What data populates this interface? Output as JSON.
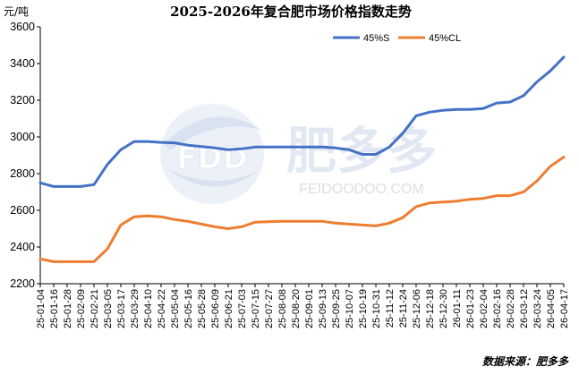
{
  "chart_data": {
    "type": "line",
    "title": "2025-2026年复合肥市场价格指数走势",
    "unit_label": "元/吨",
    "ylim": [
      2200,
      3600
    ],
    "yticks": [
      2200,
      2400,
      2600,
      2800,
      3000,
      3200,
      3400,
      3600
    ],
    "grid": false,
    "legend_position": "top-right",
    "x_tick_labels": [
      "25-01-04",
      "25-01-16",
      "25-01-28",
      "25-02-09",
      "25-02-21",
      "25-03-05",
      "25-03-17",
      "25-03-29",
      "25-04-10",
      "25-04-22",
      "25-05-04",
      "25-05-16",
      "25-05-28",
      "25-06-09",
      "25-06-21",
      "25-07-03",
      "25-07-15",
      "25-07-27",
      "25-08-08",
      "25-08-20",
      "25-09-01",
      "25-09-13",
      "25-09-25",
      "25-10-07",
      "25-10-19",
      "25-10-31",
      "25-11-12",
      "25-11-24",
      "25-12-06",
      "25-12-18",
      "25-12-30",
      "26-01-11",
      "26-01-23",
      "26-02-04",
      "26-02-16",
      "26-02-28",
      "26-03-12",
      "26-03-24",
      "26-04-05",
      "26-04-17"
    ],
    "x": [
      "25-01-04",
      "25-01-16",
      "25-01-28",
      "25-02-09",
      "25-02-21",
      "25-03-05",
      "25-03-17",
      "25-03-29",
      "25-04-10",
      "25-04-22",
      "25-05-04",
      "25-05-16",
      "25-05-28",
      "25-06-09",
      "25-06-21",
      "25-07-03",
      "25-07-15",
      "25-07-27",
      "25-08-08",
      "25-08-20",
      "25-09-01",
      "25-09-13",
      "25-09-25",
      "25-10-07",
      "25-10-19",
      "25-10-31",
      "25-11-12",
      "25-11-24",
      "25-12-06",
      "25-12-18",
      "25-12-30",
      "26-01-11",
      "26-01-23",
      "26-02-04",
      "26-02-16",
      "26-02-28",
      "26-03-12",
      "26-03-24",
      "26-04-05",
      "26-04-17"
    ],
    "series": [
      {
        "name": "45%S",
        "color": "#4472C4",
        "values": [
          2750,
          2730,
          2730,
          2730,
          2740,
          2850,
          2930,
          2975,
          2975,
          2970,
          2968,
          2955,
          2948,
          2940,
          2930,
          2935,
          2945,
          2945,
          2945,
          2945,
          2945,
          2945,
          2940,
          2930,
          2905,
          2905,
          2945,
          3020,
          3115,
          3135,
          3145,
          3150,
          3150,
          3155,
          3185,
          3190,
          3225,
          3300,
          3360,
          3435
        ]
      },
      {
        "name": "45%CL",
        "color": "#ED7D31",
        "values": [
          2335,
          2320,
          2320,
          2320,
          2320,
          2390,
          2520,
          2565,
          2570,
          2565,
          2550,
          2540,
          2525,
          2510,
          2500,
          2510,
          2535,
          2538,
          2540,
          2540,
          2540,
          2540,
          2530,
          2525,
          2520,
          2515,
          2530,
          2560,
          2620,
          2640,
          2645,
          2650,
          2660,
          2665,
          2680,
          2680,
          2700,
          2760,
          2840,
          2890
        ]
      }
    ],
    "source_text": "数据来源：肥多多"
  },
  "watermark": {
    "logo_letters": "FDD",
    "brand_cn": "肥多多",
    "brand_en": "FEIDOODOO.COM"
  }
}
